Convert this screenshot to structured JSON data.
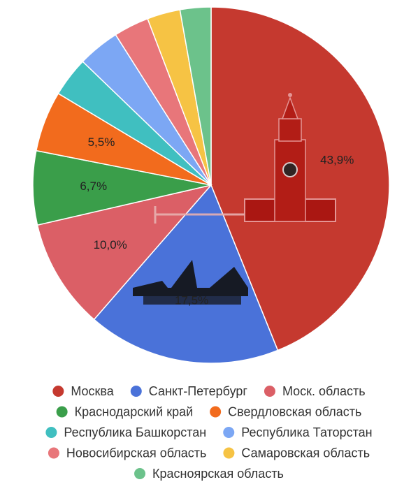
{
  "chart_data": {
    "type": "pie",
    "categories": [
      "Москва",
      "Санкт-Петербург",
      "Моск. область",
      "Краснодарский край",
      "Свердловская область",
      "Республика Башкорстан",
      "Республика Таторстан",
      "Новосибирская область",
      "Самаровская область",
      "Красноярская область"
    ],
    "values": [
      43.9,
      17.5,
      10.0,
      6.7,
      5.5,
      3.6,
      3.8,
      3.2,
      3.0,
      2.8
    ],
    "value_labels": [
      "43,9%",
      "17,5%",
      "10,0%",
      "6,7%",
      "5,5%",
      null,
      null,
      null,
      null,
      null
    ],
    "colors": [
      "#c5392f",
      "#4a72d9",
      "#db5f66",
      "#3a9e4a",
      "#f26b1d",
      "#40bfc0",
      "#7ca7f4",
      "#e8767a",
      "#f6c344",
      "#6cc28b"
    ]
  }
}
